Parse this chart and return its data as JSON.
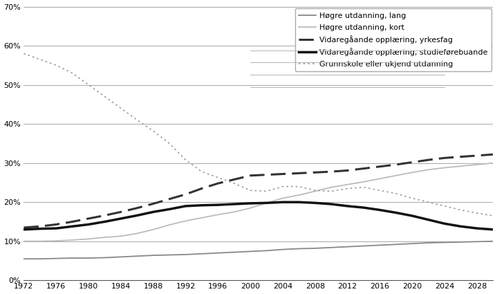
{
  "years": [
    1972,
    1974,
    1976,
    1978,
    1980,
    1982,
    1984,
    1986,
    1988,
    1990,
    1992,
    1994,
    1996,
    1998,
    2000,
    2002,
    2004,
    2006,
    2008,
    2010,
    2012,
    2014,
    2016,
    2018,
    2020,
    2022,
    2024,
    2026,
    2028,
    2030
  ],
  "hogre_lang": [
    0.055,
    0.055,
    0.056,
    0.057,
    0.057,
    0.058,
    0.06,
    0.062,
    0.064,
    0.065,
    0.066,
    0.068,
    0.07,
    0.072,
    0.074,
    0.076,
    0.079,
    0.081,
    0.082,
    0.084,
    0.086,
    0.088,
    0.09,
    0.092,
    0.094,
    0.096,
    0.097,
    0.098,
    0.099,
    0.1
  ],
  "hogre_kort": [
    0.1,
    0.1,
    0.101,
    0.103,
    0.106,
    0.11,
    0.113,
    0.12,
    0.13,
    0.142,
    0.152,
    0.16,
    0.168,
    0.175,
    0.185,
    0.198,
    0.21,
    0.218,
    0.228,
    0.238,
    0.245,
    0.252,
    0.26,
    0.268,
    0.276,
    0.283,
    0.288,
    0.292,
    0.296,
    0.3
  ],
  "vgs_yrkes": [
    0.135,
    0.138,
    0.143,
    0.15,
    0.158,
    0.166,
    0.175,
    0.185,
    0.196,
    0.208,
    0.22,
    0.235,
    0.248,
    0.258,
    0.268,
    0.27,
    0.272,
    0.274,
    0.276,
    0.278,
    0.281,
    0.286,
    0.291,
    0.296,
    0.302,
    0.308,
    0.313,
    0.316,
    0.319,
    0.322
  ],
  "vgs_stud": [
    0.13,
    0.132,
    0.133,
    0.138,
    0.143,
    0.15,
    0.158,
    0.166,
    0.175,
    0.182,
    0.19,
    0.192,
    0.193,
    0.195,
    0.197,
    0.198,
    0.2,
    0.2,
    0.198,
    0.195,
    0.19,
    0.186,
    0.18,
    0.173,
    0.165,
    0.155,
    0.145,
    0.138,
    0.133,
    0.13
  ],
  "grunnskole": [
    0.58,
    0.565,
    0.55,
    0.53,
    0.5,
    0.47,
    0.44,
    0.41,
    0.382,
    0.35,
    0.308,
    0.278,
    0.263,
    0.248,
    0.23,
    0.228,
    0.24,
    0.24,
    0.23,
    0.228,
    0.235,
    0.238,
    0.23,
    0.222,
    0.21,
    0.2,
    0.19,
    0.18,
    0.172,
    0.165
  ],
  "color_lang": "#888888",
  "color_kort": "#bbbbbb",
  "color_yrkes": "#333333",
  "color_stud": "#111111",
  "color_grunnskole": "#999999",
  "ylim": [
    0,
    0.7
  ],
  "yticks": [
    0.0,
    0.1,
    0.2,
    0.3,
    0.4,
    0.5,
    0.6,
    0.7
  ],
  "xticks": [
    1972,
    1976,
    1980,
    1984,
    1988,
    1992,
    1996,
    2000,
    2004,
    2008,
    2012,
    2016,
    2020,
    2024,
    2028
  ],
  "legend_labels": [
    "Høgre utdanning, lang",
    "Høgre utdanning, kort",
    "Vidaregåande opplæring, yrkesfag",
    "Vidaregåande opplæring, studieførebuande",
    "Grunnskole eller ukjend utdanning"
  ],
  "background_color": "#ffffff",
  "grid_color": "#999999"
}
